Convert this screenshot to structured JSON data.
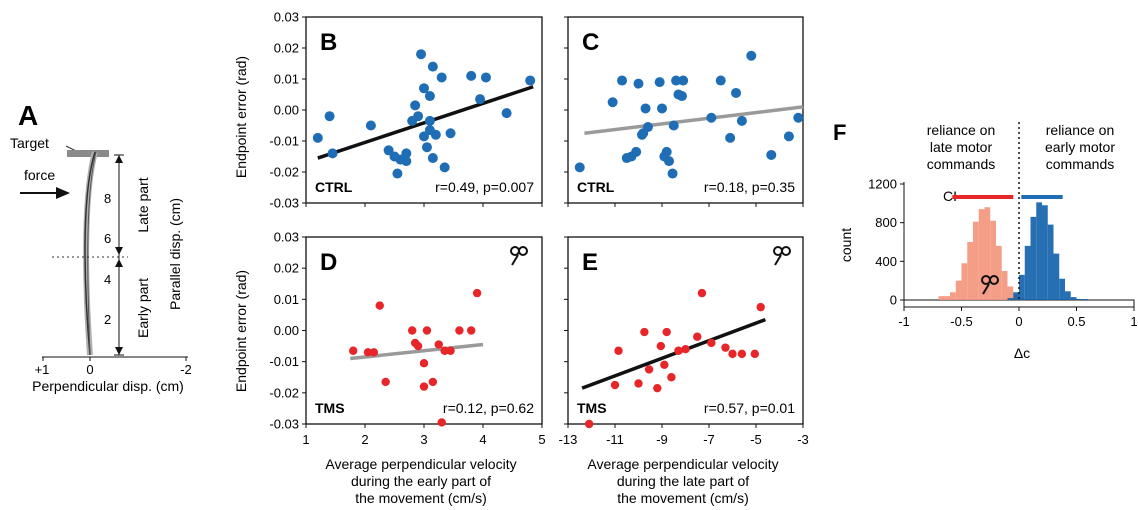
{
  "panel_a": {
    "letter": "A",
    "target_label": "Target",
    "force_label": "force",
    "late_label": "Late part",
    "early_label": "Early part",
    "y_axis_label": "Parallel disp. (cm)",
    "x_axis_label": "Perpendicular disp. (cm)",
    "y_ticks": [
      "2",
      "4",
      "6",
      "8"
    ],
    "x_ticks": [
      "+1",
      "0",
      "-2"
    ]
  },
  "axis_labels": {
    "y_top": "Endpoint error (rad)",
    "y_bottom": "Endpoint error (rad)",
    "x_left_lines": [
      "Average perpendicular velocity",
      "during the early part of",
      "the movement (cm/s)"
    ],
    "x_right_lines": [
      "Average perpendicular velocity",
      "during the late part of",
      "the movement (cm/s)"
    ]
  },
  "panel_f": {
    "letter": "F",
    "late_text": [
      "reliance on",
      "late motor",
      "commands"
    ],
    "early_text": [
      "reliance on",
      "early motor",
      "commands"
    ],
    "ci_label": "CI",
    "ylabel": "count",
    "xlabel": "Δc"
  },
  "colors": {
    "ctrl_point": "#1f6eb5",
    "tms_point": "#e8262a",
    "sig_line": "#111111",
    "nonsig_line": "#9a9a9a",
    "hist_tms": "#f4937a",
    "hist_ctrl": "#0f5fab",
    "ci_tms": "#e8262a",
    "ci_ctrl": "#1f6eb5"
  },
  "chart_data": [
    {
      "id": "B",
      "type": "scatter",
      "letter": "B",
      "group": "CTRL",
      "stats": "r=0.49, p=0.007",
      "xlim": [
        1,
        5
      ],
      "ylim": [
        -0.03,
        0.03
      ],
      "xticks": [
        "1",
        "2",
        "3",
        "4",
        "5"
      ],
      "yticks": [
        "-0.03",
        "-0.02",
        "-0.01",
        "0.00",
        "0.01",
        "0.02",
        "0.03"
      ],
      "show_xticks": false,
      "show_yticks": true,
      "point_color": "ctrl",
      "line_style": "sig",
      "fit": [
        [
          1.2,
          -0.0155
        ],
        [
          4.85,
          0.0075
        ]
      ],
      "x": [
        1.2,
        1.4,
        1.45,
        2.1,
        2.4,
        2.5,
        2.55,
        2.6,
        2.7,
        2.7,
        2.8,
        2.85,
        2.9,
        2.95,
        3.0,
        3.0,
        3.05,
        3.1,
        3.1,
        3.1,
        3.15,
        3.15,
        3.2,
        3.3,
        3.35,
        3.45,
        3.8,
        3.95,
        4.05,
        4.4,
        4.8
      ],
      "y": [
        -0.009,
        -0.002,
        -0.014,
        -0.005,
        -0.013,
        -0.015,
        -0.0205,
        -0.016,
        -0.014,
        -0.0165,
        -0.0035,
        0.0015,
        -0.002,
        0.018,
        0.007,
        -0.0085,
        -0.012,
        0.0045,
        -0.0035,
        -0.0065,
        -0.0155,
        0.014,
        -0.008,
        0.0105,
        -0.0185,
        -0.0075,
        0.011,
        0.0035,
        0.0105,
        -0.001,
        0.0095
      ]
    },
    {
      "id": "C",
      "type": "scatter",
      "letter": "C",
      "group": "CTRL",
      "stats": "r=0.18, p=0.35",
      "xlim": [
        -13,
        -3
      ],
      "ylim": [
        -0.03,
        0.03
      ],
      "show_xticks": false,
      "show_yticks": false,
      "point_color": "ctrl",
      "line_style": "nonsig",
      "fit": [
        [
          -12.3,
          -0.0075
        ],
        [
          -3.0,
          0.001
        ]
      ],
      "x": [
        -12.5,
        -11.1,
        -10.7,
        -10.5,
        -10.3,
        -10.1,
        -10.0,
        -9.85,
        -9.8,
        -9.7,
        -9.6,
        -9.1,
        -9.0,
        -8.9,
        -8.8,
        -8.7,
        -8.55,
        -8.5,
        -8.4,
        -8.3,
        -8.15,
        -8.1,
        -6.9,
        -6.5,
        -6.1,
        -5.85,
        -5.6,
        -5.2,
        -4.35,
        -3.6,
        -3.2
      ],
      "y": [
        -0.0185,
        0.0025,
        0.0095,
        -0.0155,
        -0.015,
        -0.0135,
        0.0085,
        -0.008,
        -0.0075,
        0.0005,
        -0.0055,
        0.009,
        0.0005,
        -0.015,
        -0.0135,
        -0.0165,
        -0.0205,
        -0.005,
        0.0095,
        0.005,
        0.0045,
        0.0095,
        -0.0025,
        0.0095,
        -0.009,
        0.0055,
        -0.0035,
        0.0175,
        -0.0145,
        -0.0085,
        -0.0025
      ]
    },
    {
      "id": "D",
      "type": "scatter",
      "letter": "D",
      "group": "TMS",
      "stats": "r=0.12, p=0.62",
      "xlim": [
        1,
        5
      ],
      "ylim": [
        -0.03,
        0.03
      ],
      "xticks": [
        "1",
        "2",
        "3",
        "4",
        "5"
      ],
      "yticks": [
        "-0.03",
        "-0.02",
        "-0.01",
        "0.00",
        "0.01",
        "0.02",
        "0.03"
      ],
      "show_xticks": true,
      "show_yticks": true,
      "point_color": "tms",
      "line_style": "nonsig",
      "fit": [
        [
          1.75,
          -0.009
        ],
        [
          4.0,
          -0.0045
        ]
      ],
      "x": [
        1.8,
        2.05,
        2.15,
        2.25,
        2.35,
        2.8,
        2.85,
        2.9,
        3.0,
        3.0,
        3.05,
        3.15,
        3.25,
        3.3,
        3.35,
        3.45,
        3.6,
        3.8,
        3.9
      ],
      "y": [
        -0.0065,
        -0.007,
        -0.007,
        0.008,
        -0.0165,
        0.0,
        -0.004,
        -0.005,
        -0.0105,
        -0.018,
        0.0,
        -0.0165,
        -0.0045,
        -0.0295,
        -0.0065,
        -0.0065,
        0.0,
        0.0,
        0.012
      ]
    },
    {
      "id": "E",
      "type": "scatter",
      "letter": "E",
      "group": "TMS",
      "stats": "r=0.57, p=0.01",
      "xlim": [
        -13,
        -3
      ],
      "ylim": [
        -0.03,
        0.03
      ],
      "xticks": [
        "-13",
        "-11",
        "-9",
        "-7",
        "-5",
        "-3"
      ],
      "show_xticks": true,
      "show_yticks": false,
      "point_color": "tms",
      "line_style": "sig",
      "fit": [
        [
          -12.4,
          -0.0185
        ],
        [
          -4.6,
          0.0035
        ]
      ],
      "x": [
        -12.1,
        -11.0,
        -10.85,
        -10.0,
        -9.75,
        -9.55,
        -9.2,
        -9.05,
        -8.9,
        -8.8,
        -8.6,
        -8.3,
        -8.0,
        -7.5,
        -7.3,
        -6.9,
        -6.3,
        -6.0,
        -5.6,
        -5.05,
        -4.8
      ],
      "y": [
        -0.03,
        -0.0175,
        -0.0065,
        -0.017,
        -0.0005,
        -0.0125,
        -0.0185,
        -0.005,
        -0.011,
        -0.0005,
        -0.015,
        -0.0065,
        -0.006,
        -0.002,
        0.012,
        -0.004,
        -0.0055,
        -0.0075,
        -0.0075,
        -0.0075,
        0.0075
      ]
    },
    {
      "id": "F",
      "type": "histogram",
      "xlim": [
        -1,
        1
      ],
      "ylim": [
        0,
        1200
      ],
      "xticks": [
        "-1",
        "-0.5",
        "0",
        "0.5",
        "1"
      ],
      "yticks": [
        "0",
        "400",
        "800",
        "1200"
      ],
      "tms_hist": {
        "edges": [
          -0.7,
          -0.6,
          -0.55,
          -0.5,
          -0.45,
          -0.4,
          -0.35,
          -0.3,
          -0.25,
          -0.2,
          -0.15,
          -0.1,
          -0.05,
          0.0,
          0.05
        ],
        "counts": [
          40,
          80,
          200,
          380,
          600,
          810,
          940,
          960,
          820,
          560,
          300,
          140,
          60,
          20
        ]
      },
      "ctrl_hist": {
        "edges": [
          -0.1,
          -0.05,
          0.0,
          0.05,
          0.1,
          0.15,
          0.2,
          0.25,
          0.3,
          0.35,
          0.4,
          0.45,
          0.5,
          0.6
        ],
        "counts": [
          20,
          80,
          260,
          560,
          860,
          1010,
          980,
          780,
          480,
          220,
          90,
          30,
          10
        ]
      },
      "ci_tms": [
        -0.58,
        -0.05
      ],
      "ci_ctrl": [
        0.02,
        0.38
      ]
    }
  ]
}
